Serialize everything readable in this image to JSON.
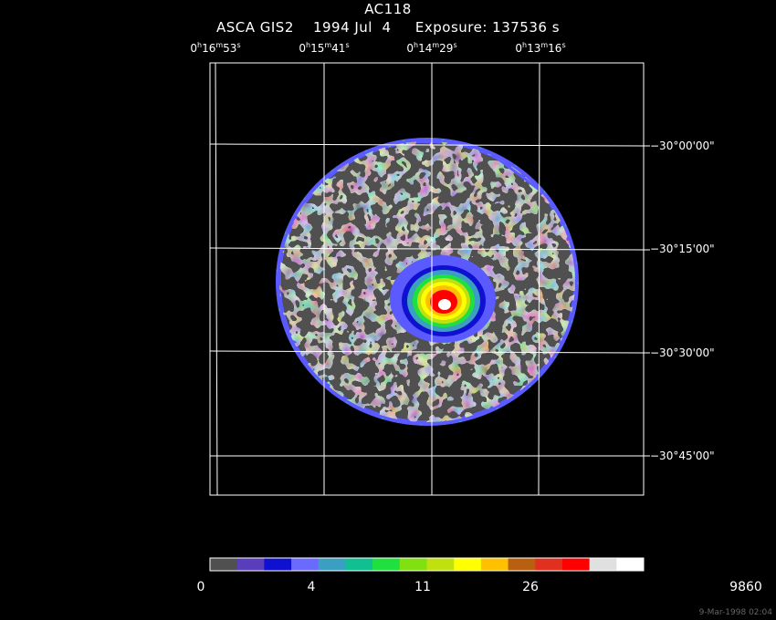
{
  "header": {
    "object": "AC118",
    "subtitle": "ASCA GIS2    1994 Jul  4     Exposure: 137536 s"
  },
  "ra_axis": [
    {
      "h": "0",
      "m": "16",
      "s": "53"
    },
    {
      "h": "0",
      "m": "15",
      "s": "41"
    },
    {
      "h": "0",
      "m": "14",
      "s": "29"
    },
    {
      "h": "0",
      "m": "13",
      "s": "16"
    }
  ],
  "dec_axis": [
    "−30°00'00\"",
    "−30°15'00\"",
    "−30°30'00\"",
    "−30°45'00\""
  ],
  "colorbar": {
    "labels": [
      "0",
      "4",
      "11",
      "26",
      "9860"
    ],
    "colors": [
      "#505050",
      "#5a3dbb",
      "#1010d0",
      "#6a6aff",
      "#3a9fc0",
      "#10c090",
      "#20e040",
      "#80e010",
      "#c0e010",
      "#ffff00",
      "#ffc000",
      "#b86010",
      "#e03020",
      "#ff0000",
      "#e0e0e0",
      "#ffffff"
    ]
  },
  "image_colors": {
    "background": "#000000",
    "detector": "#505050",
    "rim": "#5a5aff",
    "core": [
      "#3a9fc0",
      "#20e040",
      "#ffff00",
      "#ffc000",
      "#ff0000",
      "#ffffff"
    ]
  },
  "timestamp": "9-Mar-1998 02:04"
}
